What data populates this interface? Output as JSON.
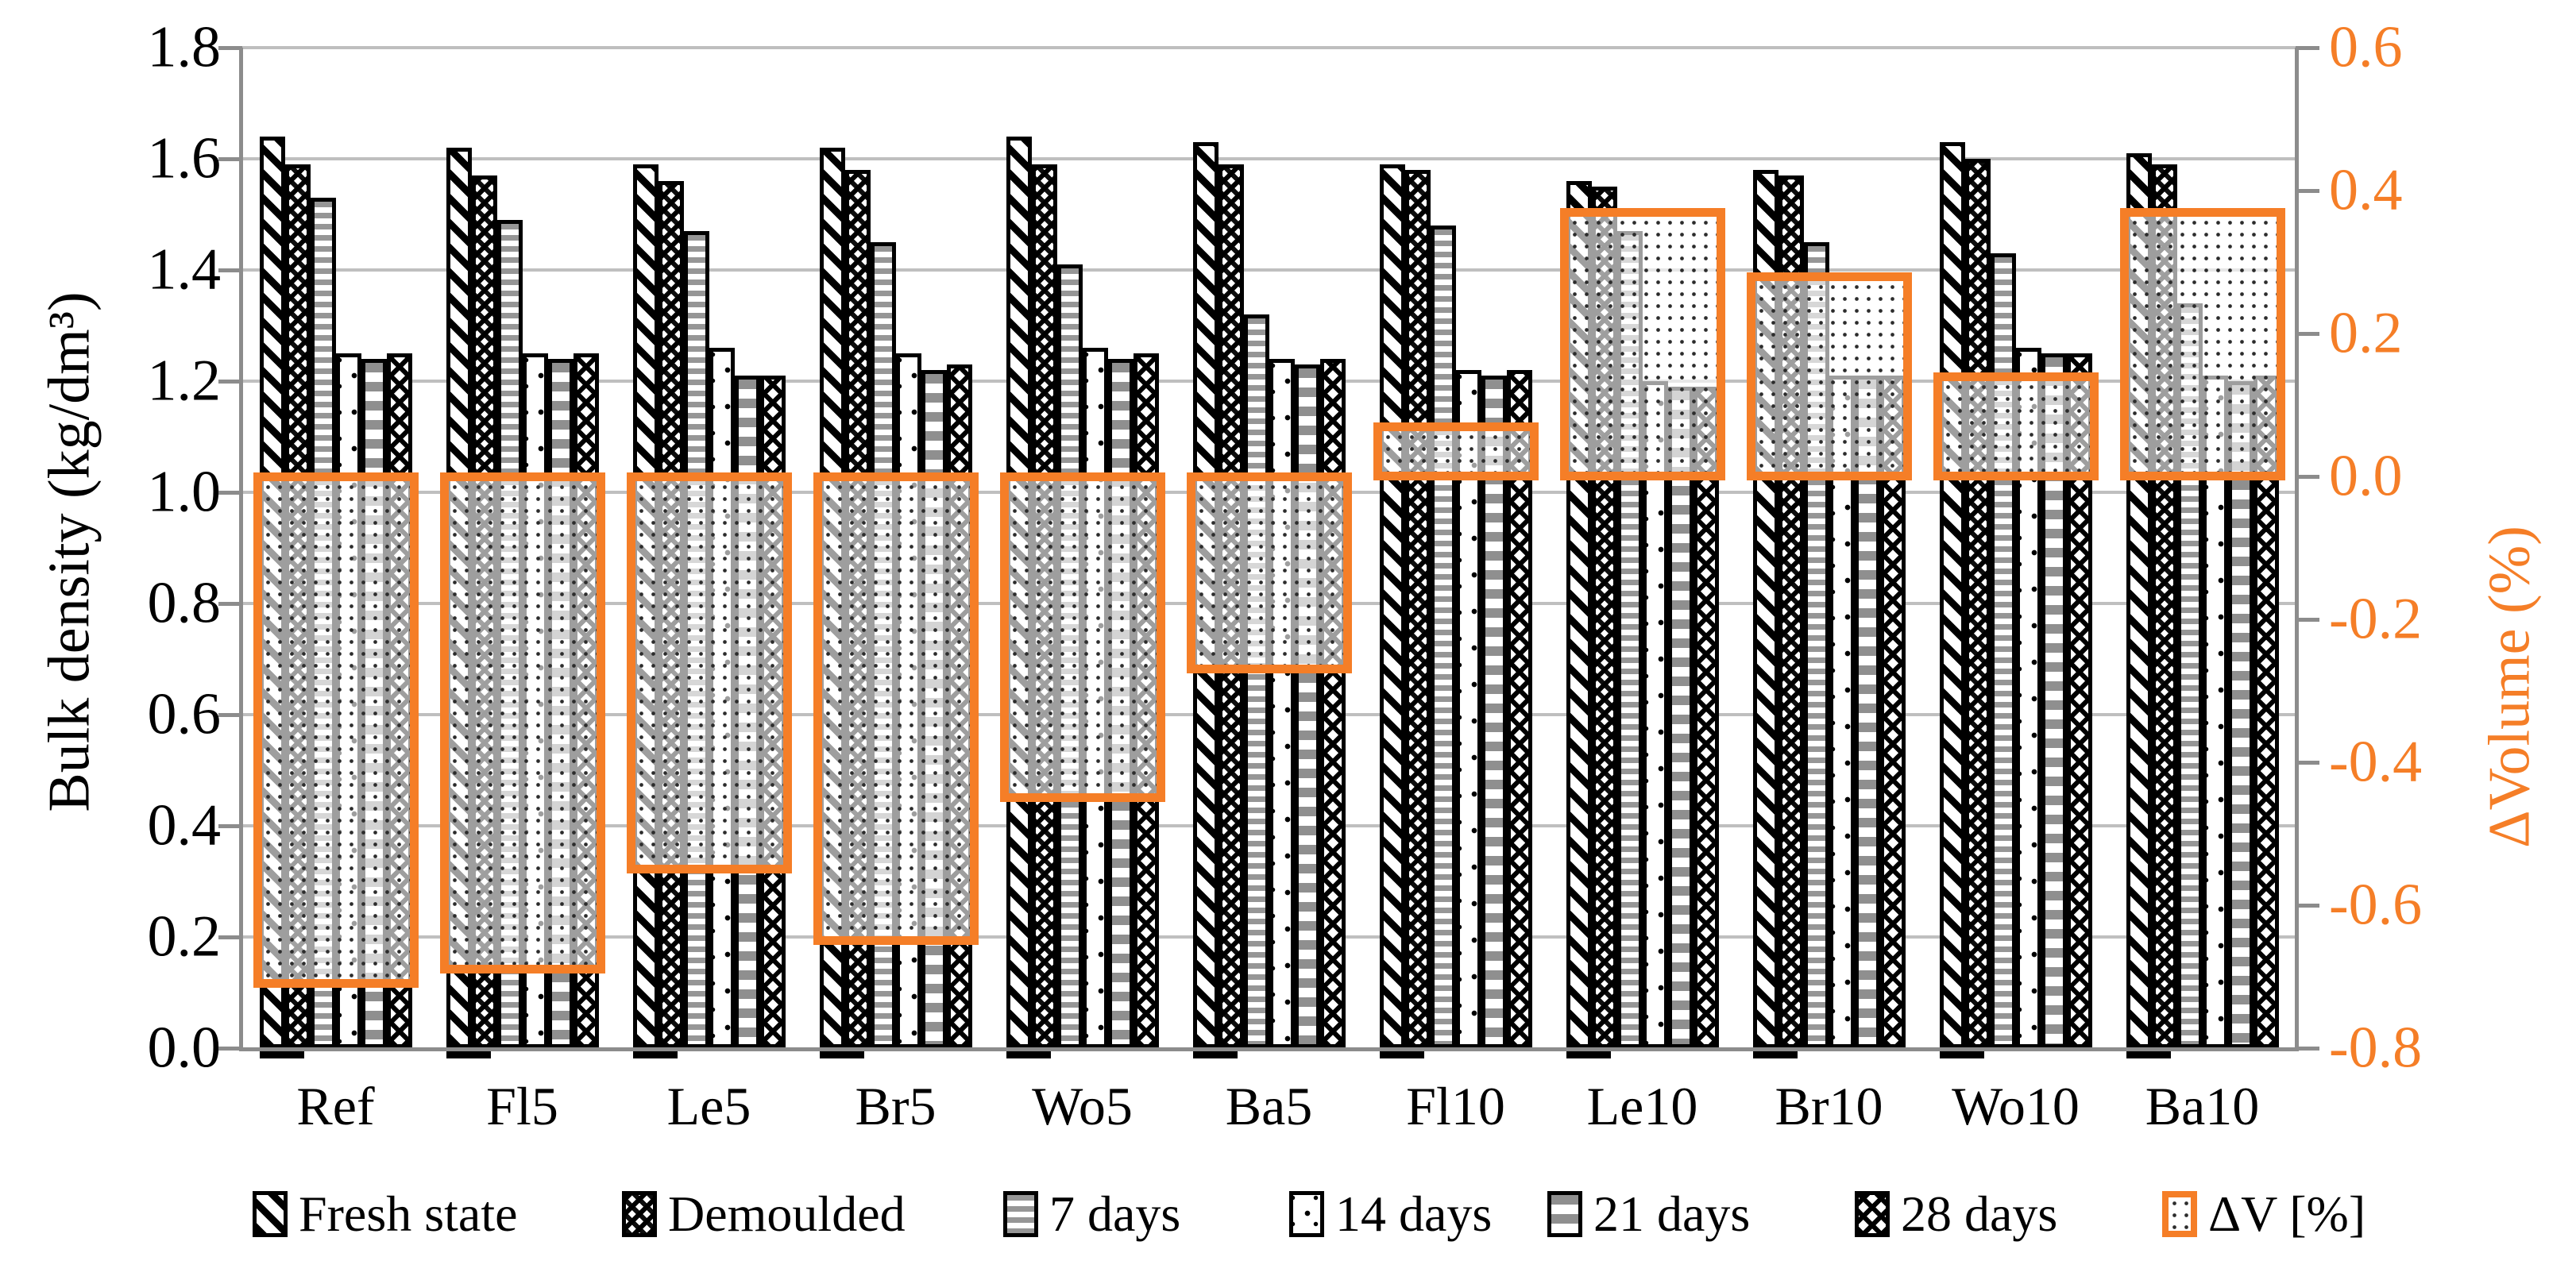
{
  "chart_data": {
    "type": "bar",
    "title": "",
    "categories": [
      "Ref",
      "Fl5",
      "Le5",
      "Br5",
      "Wo5",
      "Ba5",
      "Fl10",
      "Le10",
      "Br10",
      "Wo10",
      "Ba10"
    ],
    "series": [
      {
        "name": "Fresh state",
        "pattern": "fresh",
        "values": [
          1.64,
          1.62,
          1.59,
          1.62,
          1.64,
          1.63,
          1.59,
          1.56,
          1.58,
          1.63,
          1.61
        ]
      },
      {
        "name": "Demoulded",
        "pattern": "demoulded",
        "values": [
          1.59,
          1.57,
          1.56,
          1.58,
          1.59,
          1.59,
          1.58,
          1.55,
          1.57,
          1.6,
          1.59
        ]
      },
      {
        "name": "7 days",
        "pattern": "d7",
        "values": [
          1.53,
          1.49,
          1.47,
          1.45,
          1.41,
          1.32,
          1.48,
          1.47,
          1.45,
          1.43,
          1.34
        ]
      },
      {
        "name": "14 days",
        "pattern": "d14",
        "values": [
          1.25,
          1.25,
          1.26,
          1.25,
          1.26,
          1.24,
          1.22,
          1.2,
          1.21,
          1.26,
          1.21
        ]
      },
      {
        "name": "21 days",
        "pattern": "d21",
        "values": [
          1.24,
          1.24,
          1.21,
          1.22,
          1.24,
          1.23,
          1.21,
          1.19,
          1.21,
          1.25,
          1.2
        ]
      },
      {
        "name": "28 days",
        "pattern": "d28",
        "values": [
          1.25,
          1.25,
          1.21,
          1.23,
          1.25,
          1.24,
          1.22,
          1.19,
          1.21,
          1.25,
          1.21
        ]
      }
    ],
    "delta_series": {
      "name": "ΔV [%]",
      "pattern": "dv",
      "values": [
        -0.71,
        -0.69,
        -0.55,
        -0.65,
        -0.45,
        -0.27,
        0.07,
        0.37,
        0.28,
        0.14,
        0.37
      ]
    },
    "left_axis": {
      "title": "Bulk density (kg/dm³)",
      "min": 0.0,
      "max": 1.8,
      "step": 0.2,
      "ticks": [
        "1.8",
        "1.6",
        "1.4",
        "1.2",
        "1.0",
        "0.8",
        "0.6",
        "0.4",
        "0.2",
        "0.0"
      ]
    },
    "right_axis": {
      "title": "ΔVolume (%)",
      "min": -0.8,
      "max": 0.6,
      "step": 0.2,
      "ticks": [
        "0.6",
        "0.4",
        "0.2",
        "0.0",
        "-0.2",
        "-0.4",
        "-0.6",
        "-0.8"
      ]
    },
    "legend": [
      "Fresh state",
      "Demoulded",
      "7 days",
      "14 days",
      "21 days",
      "28 days",
      "ΔV [%]"
    ],
    "grid": true,
    "legend_position": "bottom",
    "colors": {
      "orange": "#F57E27",
      "gridline": "#BFBFBF",
      "axis": "#8C8C8C",
      "stripe_gray": "#969696",
      "black": "#000000"
    }
  }
}
